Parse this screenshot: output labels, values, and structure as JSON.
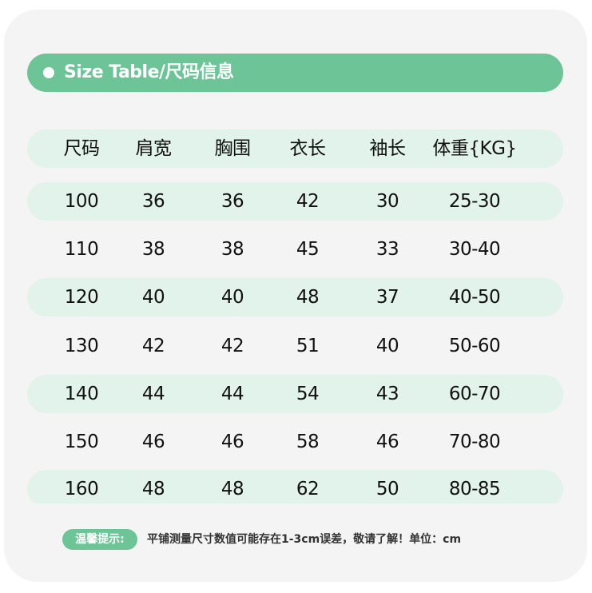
{
  "title": "Size Table/尺码信息",
  "colors": {
    "accent": "#6cc497",
    "row_shade": "#e2f3ec",
    "card_bg": "#f4f4f4"
  },
  "headers": [
    "尺码",
    "肩宽",
    "胸围",
    "衣长",
    "袖长",
    "体重{KG}"
  ],
  "rows": [
    [
      "100",
      "36",
      "36",
      "42",
      "30",
      "25-30"
    ],
    [
      "110",
      "38",
      "38",
      "45",
      "33",
      "30-40"
    ],
    [
      "120",
      "40",
      "40",
      "48",
      "37",
      "40-50"
    ],
    [
      "130",
      "42",
      "42",
      "51",
      "40",
      "50-60"
    ],
    [
      "140",
      "44",
      "44",
      "54",
      "43",
      "60-70"
    ],
    [
      "150",
      "46",
      "46",
      "58",
      "46",
      "70-80"
    ],
    [
      "160",
      "48",
      "48",
      "62",
      "50",
      "80-85"
    ]
  ],
  "note": {
    "label": "温馨提示:",
    "text": "平铺测量尺寸数值可能存在1-3cm误差，敬请了解！单位：cm"
  }
}
